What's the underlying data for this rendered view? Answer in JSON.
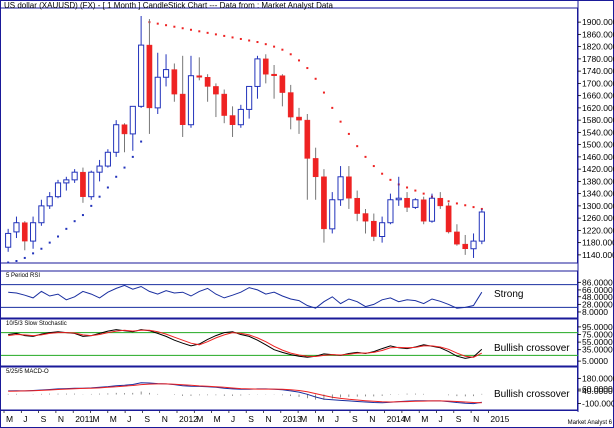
{
  "title": "US dollar (XAUUSD) (FX) -  [ 1 Month ] CandleStick Chart --- Data from : Market Analyst Data",
  "footer_text": "Market Analyst 6",
  "colors": {
    "up": "#2233bb",
    "down": "#ee2222",
    "dots_up": "#2233bb",
    "dots_down": "#ee2222",
    "border": "#1a1a99",
    "axis_bg": "#ffffff",
    "green_line": "#22aa22",
    "rsi_line": "#1a2fa0",
    "stoch_k": "#000000",
    "stoch_d": "#ee2222",
    "macd_line": "#1a2fa0",
    "macd_signal": "#ee2222"
  },
  "x_labels": [
    "M",
    "J",
    "S",
    "N",
    "2011",
    "M",
    "M",
    "J",
    "S",
    "N",
    "2012",
    "M",
    "M",
    "J",
    "S",
    "N",
    "2013",
    "M",
    "M",
    "J",
    "S",
    "N",
    "2014",
    "M",
    "M",
    "J",
    "S",
    "N",
    "2015"
  ],
  "chart_data": [
    {
      "type": "candlestick",
      "title": "US dollar (XAUUSD) (FX) -  [ 1 Month ] CandleStick Chart --- Data from : Market Analyst Data",
      "ylim": [
        1120,
        1920
      ],
      "y_ticks": [
        "1900.0000",
        "1860.0000",
        "1820.0000",
        "1780.0000",
        "1740.0000",
        "1700.0000",
        "1660.0000",
        "1620.0000",
        "1580.0000",
        "1540.0000",
        "1500.0000",
        "1460.0000",
        "1420.0000",
        "1380.0000",
        "1340.0000",
        "1300.0000",
        "1260.0000",
        "1220.0000",
        "1180.0000",
        "1140.0000"
      ],
      "candles": [
        {
          "o": 1165,
          "h": 1225,
          "l": 1150,
          "c": 1210
        },
        {
          "o": 1215,
          "h": 1265,
          "l": 1195,
          "c": 1245
        },
        {
          "o": 1245,
          "h": 1250,
          "l": 1155,
          "c": 1185
        },
        {
          "o": 1185,
          "h": 1265,
          "l": 1160,
          "c": 1245
        },
        {
          "o": 1245,
          "h": 1320,
          "l": 1235,
          "c": 1300
        },
        {
          "o": 1300,
          "h": 1345,
          "l": 1290,
          "c": 1330
        },
        {
          "o": 1330,
          "h": 1385,
          "l": 1325,
          "c": 1375
        },
        {
          "o": 1375,
          "h": 1395,
          "l": 1350,
          "c": 1385
        },
        {
          "o": 1385,
          "h": 1420,
          "l": 1375,
          "c": 1410
        },
        {
          "o": 1410,
          "h": 1425,
          "l": 1310,
          "c": 1330
        },
        {
          "o": 1330,
          "h": 1415,
          "l": 1320,
          "c": 1410
        },
        {
          "o": 1410,
          "h": 1450,
          "l": 1380,
          "c": 1430
        },
        {
          "o": 1430,
          "h": 1485,
          "l": 1425,
          "c": 1475
        },
        {
          "o": 1475,
          "h": 1580,
          "l": 1460,
          "c": 1565
        },
        {
          "o": 1565,
          "h": 1570,
          "l": 1475,
          "c": 1535
        },
        {
          "o": 1535,
          "h": 1625,
          "l": 1480,
          "c": 1625
        },
        {
          "o": 1625,
          "h": 1920,
          "l": 1620,
          "c": 1825
        },
        {
          "o": 1825,
          "h": 1910,
          "l": 1535,
          "c": 1620
        },
        {
          "o": 1620,
          "h": 1800,
          "l": 1600,
          "c": 1720
        },
        {
          "o": 1720,
          "h": 1795,
          "l": 1690,
          "c": 1745
        },
        {
          "o": 1745,
          "h": 1765,
          "l": 1640,
          "c": 1665
        },
        {
          "o": 1665,
          "h": 1790,
          "l": 1525,
          "c": 1565
        },
        {
          "o": 1565,
          "h": 1790,
          "l": 1555,
          "c": 1725
        },
        {
          "o": 1725,
          "h": 1785,
          "l": 1710,
          "c": 1720
        },
        {
          "o": 1720,
          "h": 1730,
          "l": 1640,
          "c": 1690
        },
        {
          "o": 1690,
          "h": 1700,
          "l": 1590,
          "c": 1665
        },
        {
          "o": 1665,
          "h": 1680,
          "l": 1570,
          "c": 1595
        },
        {
          "o": 1595,
          "h": 1625,
          "l": 1525,
          "c": 1565
        },
        {
          "o": 1565,
          "h": 1630,
          "l": 1555,
          "c": 1615
        },
        {
          "o": 1615,
          "h": 1690,
          "l": 1585,
          "c": 1690
        },
        {
          "o": 1690,
          "h": 1790,
          "l": 1650,
          "c": 1780
        },
        {
          "o": 1780,
          "h": 1795,
          "l": 1700,
          "c": 1730
        },
        {
          "o": 1730,
          "h": 1760,
          "l": 1650,
          "c": 1725
        },
        {
          "o": 1725,
          "h": 1730,
          "l": 1625,
          "c": 1670
        },
        {
          "o": 1670,
          "h": 1695,
          "l": 1550,
          "c": 1590
        },
        {
          "o": 1590,
          "h": 1620,
          "l": 1535,
          "c": 1580
        },
        {
          "o": 1580,
          "h": 1600,
          "l": 1320,
          "c": 1455
        },
        {
          "o": 1455,
          "h": 1490,
          "l": 1320,
          "c": 1395
        },
        {
          "o": 1395,
          "h": 1420,
          "l": 1180,
          "c": 1225
        },
        {
          "o": 1225,
          "h": 1345,
          "l": 1210,
          "c": 1320
        },
        {
          "o": 1320,
          "h": 1430,
          "l": 1300,
          "c": 1395
        },
        {
          "o": 1395,
          "h": 1430,
          "l": 1290,
          "c": 1325
        },
        {
          "o": 1325,
          "h": 1350,
          "l": 1250,
          "c": 1275
        },
        {
          "o": 1275,
          "h": 1290,
          "l": 1210,
          "c": 1250
        },
        {
          "o": 1250,
          "h": 1275,
          "l": 1185,
          "c": 1200
        },
        {
          "o": 1200,
          "h": 1265,
          "l": 1180,
          "c": 1245
        },
        {
          "o": 1245,
          "h": 1340,
          "l": 1240,
          "c": 1320
        },
        {
          "o": 1320,
          "h": 1395,
          "l": 1300,
          "c": 1325
        },
        {
          "o": 1325,
          "h": 1345,
          "l": 1280,
          "c": 1295
        },
        {
          "o": 1295,
          "h": 1325,
          "l": 1290,
          "c": 1320
        },
        {
          "o": 1320,
          "h": 1330,
          "l": 1240,
          "c": 1250
        },
        {
          "o": 1250,
          "h": 1340,
          "l": 1245,
          "c": 1325
        },
        {
          "o": 1325,
          "h": 1345,
          "l": 1290,
          "c": 1300
        },
        {
          "o": 1300,
          "h": 1310,
          "l": 1210,
          "c": 1215
        },
        {
          "o": 1215,
          "h": 1240,
          "l": 1170,
          "c": 1175
        },
        {
          "o": 1175,
          "h": 1205,
          "l": 1140,
          "c": 1160
        },
        {
          "o": 1160,
          "h": 1210,
          "l": 1130,
          "c": 1185
        },
        {
          "o": 1185,
          "h": 1290,
          "l": 1175,
          "c": 1280
        }
      ],
      "sar": [
        {
          "v": 1115,
          "s": "u"
        },
        {
          "v": 1120,
          "s": "u"
        },
        {
          "v": 1130,
          "s": "u"
        },
        {
          "v": 1145,
          "s": "u"
        },
        {
          "v": 1160,
          "s": "u"
        },
        {
          "v": 1180,
          "s": "u"
        },
        {
          "v": 1200,
          "s": "u"
        },
        {
          "v": 1225,
          "s": "u"
        },
        {
          "v": 1250,
          "s": "u"
        },
        {
          "v": 1270,
          "s": "u"
        },
        {
          "v": 1300,
          "s": "u"
        },
        {
          "v": 1330,
          "s": "u"
        },
        {
          "v": 1360,
          "s": "u"
        },
        {
          "v": 1395,
          "s": "u"
        },
        {
          "v": 1425,
          "s": "u"
        },
        {
          "v": 1460,
          "s": "u"
        },
        {
          "v": 1510,
          "s": "u"
        },
        {
          "v": 1900,
          "s": "d"
        },
        {
          "v": 1895,
          "s": "d"
        },
        {
          "v": 1890,
          "s": "d"
        },
        {
          "v": 1885,
          "s": "d"
        },
        {
          "v": 1880,
          "s": "d"
        },
        {
          "v": 1875,
          "s": "d"
        },
        {
          "v": 1870,
          "s": "d"
        },
        {
          "v": 1865,
          "s": "d"
        },
        {
          "v": 1860,
          "s": "d"
        },
        {
          "v": 1855,
          "s": "d"
        },
        {
          "v": 1850,
          "s": "d"
        },
        {
          "v": 1845,
          "s": "d"
        },
        {
          "v": 1840,
          "s": "d"
        },
        {
          "v": 1835,
          "s": "d"
        },
        {
          "v": 1828,
          "s": "d"
        },
        {
          "v": 1820,
          "s": "d"
        },
        {
          "v": 1810,
          "s": "d"
        },
        {
          "v": 1795,
          "s": "d"
        },
        {
          "v": 1775,
          "s": "d"
        },
        {
          "v": 1750,
          "s": "d"
        },
        {
          "v": 1715,
          "s": "d"
        },
        {
          "v": 1670,
          "s": "d"
        },
        {
          "v": 1620,
          "s": "d"
        },
        {
          "v": 1575,
          "s": "d"
        },
        {
          "v": 1535,
          "s": "d"
        },
        {
          "v": 1495,
          "s": "d"
        },
        {
          "v": 1460,
          "s": "d"
        },
        {
          "v": 1430,
          "s": "d"
        },
        {
          "v": 1405,
          "s": "d"
        },
        {
          "v": 1385,
          "s": "d"
        },
        {
          "v": 1370,
          "s": "d"
        },
        {
          "v": 1360,
          "s": "d"
        },
        {
          "v": 1350,
          "s": "d"
        },
        {
          "v": 1340,
          "s": "d"
        },
        {
          "v": 1330,
          "s": "d"
        },
        {
          "v": 1322,
          "s": "d"
        },
        {
          "v": 1315,
          "s": "d"
        },
        {
          "v": 1308,
          "s": "d"
        },
        {
          "v": 1302,
          "s": "d"
        },
        {
          "v": 1296,
          "s": "d"
        },
        {
          "v": 1290,
          "s": "d"
        }
      ]
    },
    {
      "type": "line",
      "title": "5 Period RSI",
      "ylim": [
        0,
        100
      ],
      "y_ticks": [
        "86.0000",
        "66.0000",
        "48.0000",
        "28.0000",
        "8.0000"
      ],
      "hlines": [
        80,
        20
      ],
      "annotation": "Strong",
      "series": [
        {
          "values": [
            60,
            58,
            52,
            45,
            62,
            50,
            55,
            40,
            48,
            62,
            55,
            45,
            60,
            70,
            78,
            68,
            75,
            62,
            55,
            64,
            58,
            60,
            50,
            62,
            70,
            55,
            45,
            52,
            60,
            72,
            66,
            55,
            60,
            50,
            42,
            38,
            25,
            18,
            35,
            48,
            30,
            42,
            35,
            22,
            28,
            40,
            45,
            35,
            40,
            38,
            30,
            42,
            36,
            28,
            18,
            20,
            25,
            60
          ]
        }
      ]
    },
    {
      "type": "line",
      "title": "10/5/3 Slow Stochastic",
      "ylim": [
        0,
        100
      ],
      "y_ticks": [
        "95.0000",
        "75.0000",
        "55.0000",
        "35.0000",
        "5.0000"
      ],
      "hlines": [
        80,
        20
      ],
      "annotation": "Bullish crossover",
      "series": [
        {
          "values": [
            75,
            78,
            72,
            70,
            76,
            80,
            82,
            80,
            78,
            70,
            72,
            78,
            84,
            88,
            85,
            82,
            88,
            85,
            78,
            70,
            60,
            52,
            45,
            50,
            62,
            72,
            80,
            82,
            75,
            70,
            60,
            48,
            35,
            28,
            22,
            18,
            15,
            18,
            24,
            22,
            20,
            25,
            28,
            25,
            30,
            38,
            45,
            40,
            38,
            42,
            48,
            44,
            40,
            30,
            18,
            12,
            16,
            36
          ]
        },
        {
          "values": [
            72,
            75,
            74,
            72,
            74,
            78,
            80,
            80,
            79,
            74,
            72,
            75,
            80,
            84,
            86,
            84,
            86,
            86,
            82,
            76,
            68,
            60,
            52,
            48,
            56,
            66,
            74,
            80,
            78,
            74,
            66,
            56,
            44,
            34,
            26,
            21,
            18,
            17,
            20,
            22,
            21,
            23,
            26,
            26,
            28,
            33,
            40,
            41,
            40,
            41,
            45,
            45,
            42,
            36,
            26,
            18,
            15,
            26
          ]
        }
      ]
    },
    {
      "type": "line",
      "title": "5/25/5 MACD-O",
      "ylim": [
        -140,
        240
      ],
      "y_ticks": [
        "180.0000",
        "60.0000",
        "40.0000",
        "-100.0000"
      ],
      "annotation": "Bullish crossover",
      "series": [
        {
          "values": [
            40,
            42,
            40,
            44,
            50,
            56,
            62,
            66,
            70,
            70,
            74,
            80,
            88,
            98,
            104,
            112,
            132,
            128,
            122,
            118,
            110,
            98,
            92,
            90,
            86,
            80,
            70,
            62,
            58,
            58,
            62,
            62,
            58,
            52,
            40,
            26,
            2,
            -28,
            -52,
            -60,
            -66,
            -72,
            -78,
            -84,
            -90,
            -92,
            -88,
            -80,
            -74,
            -70,
            -70,
            -72,
            -72,
            -80,
            -90,
            -98,
            -102,
            -88
          ]
        },
        {
          "values": [
            36,
            38,
            40,
            42,
            46,
            50,
            56,
            60,
            64,
            68,
            70,
            74,
            80,
            86,
            94,
            100,
            110,
            116,
            118,
            118,
            114,
            108,
            102,
            96,
            92,
            86,
            80,
            72,
            66,
            62,
            60,
            60,
            60,
            58,
            52,
            44,
            30,
            10,
            -12,
            -30,
            -44,
            -54,
            -62,
            -70,
            -76,
            -82,
            -84,
            -82,
            -80,
            -76,
            -74,
            -72,
            -72,
            -74,
            -78,
            -84,
            -90,
            -92
          ]
        }
      ]
    }
  ]
}
